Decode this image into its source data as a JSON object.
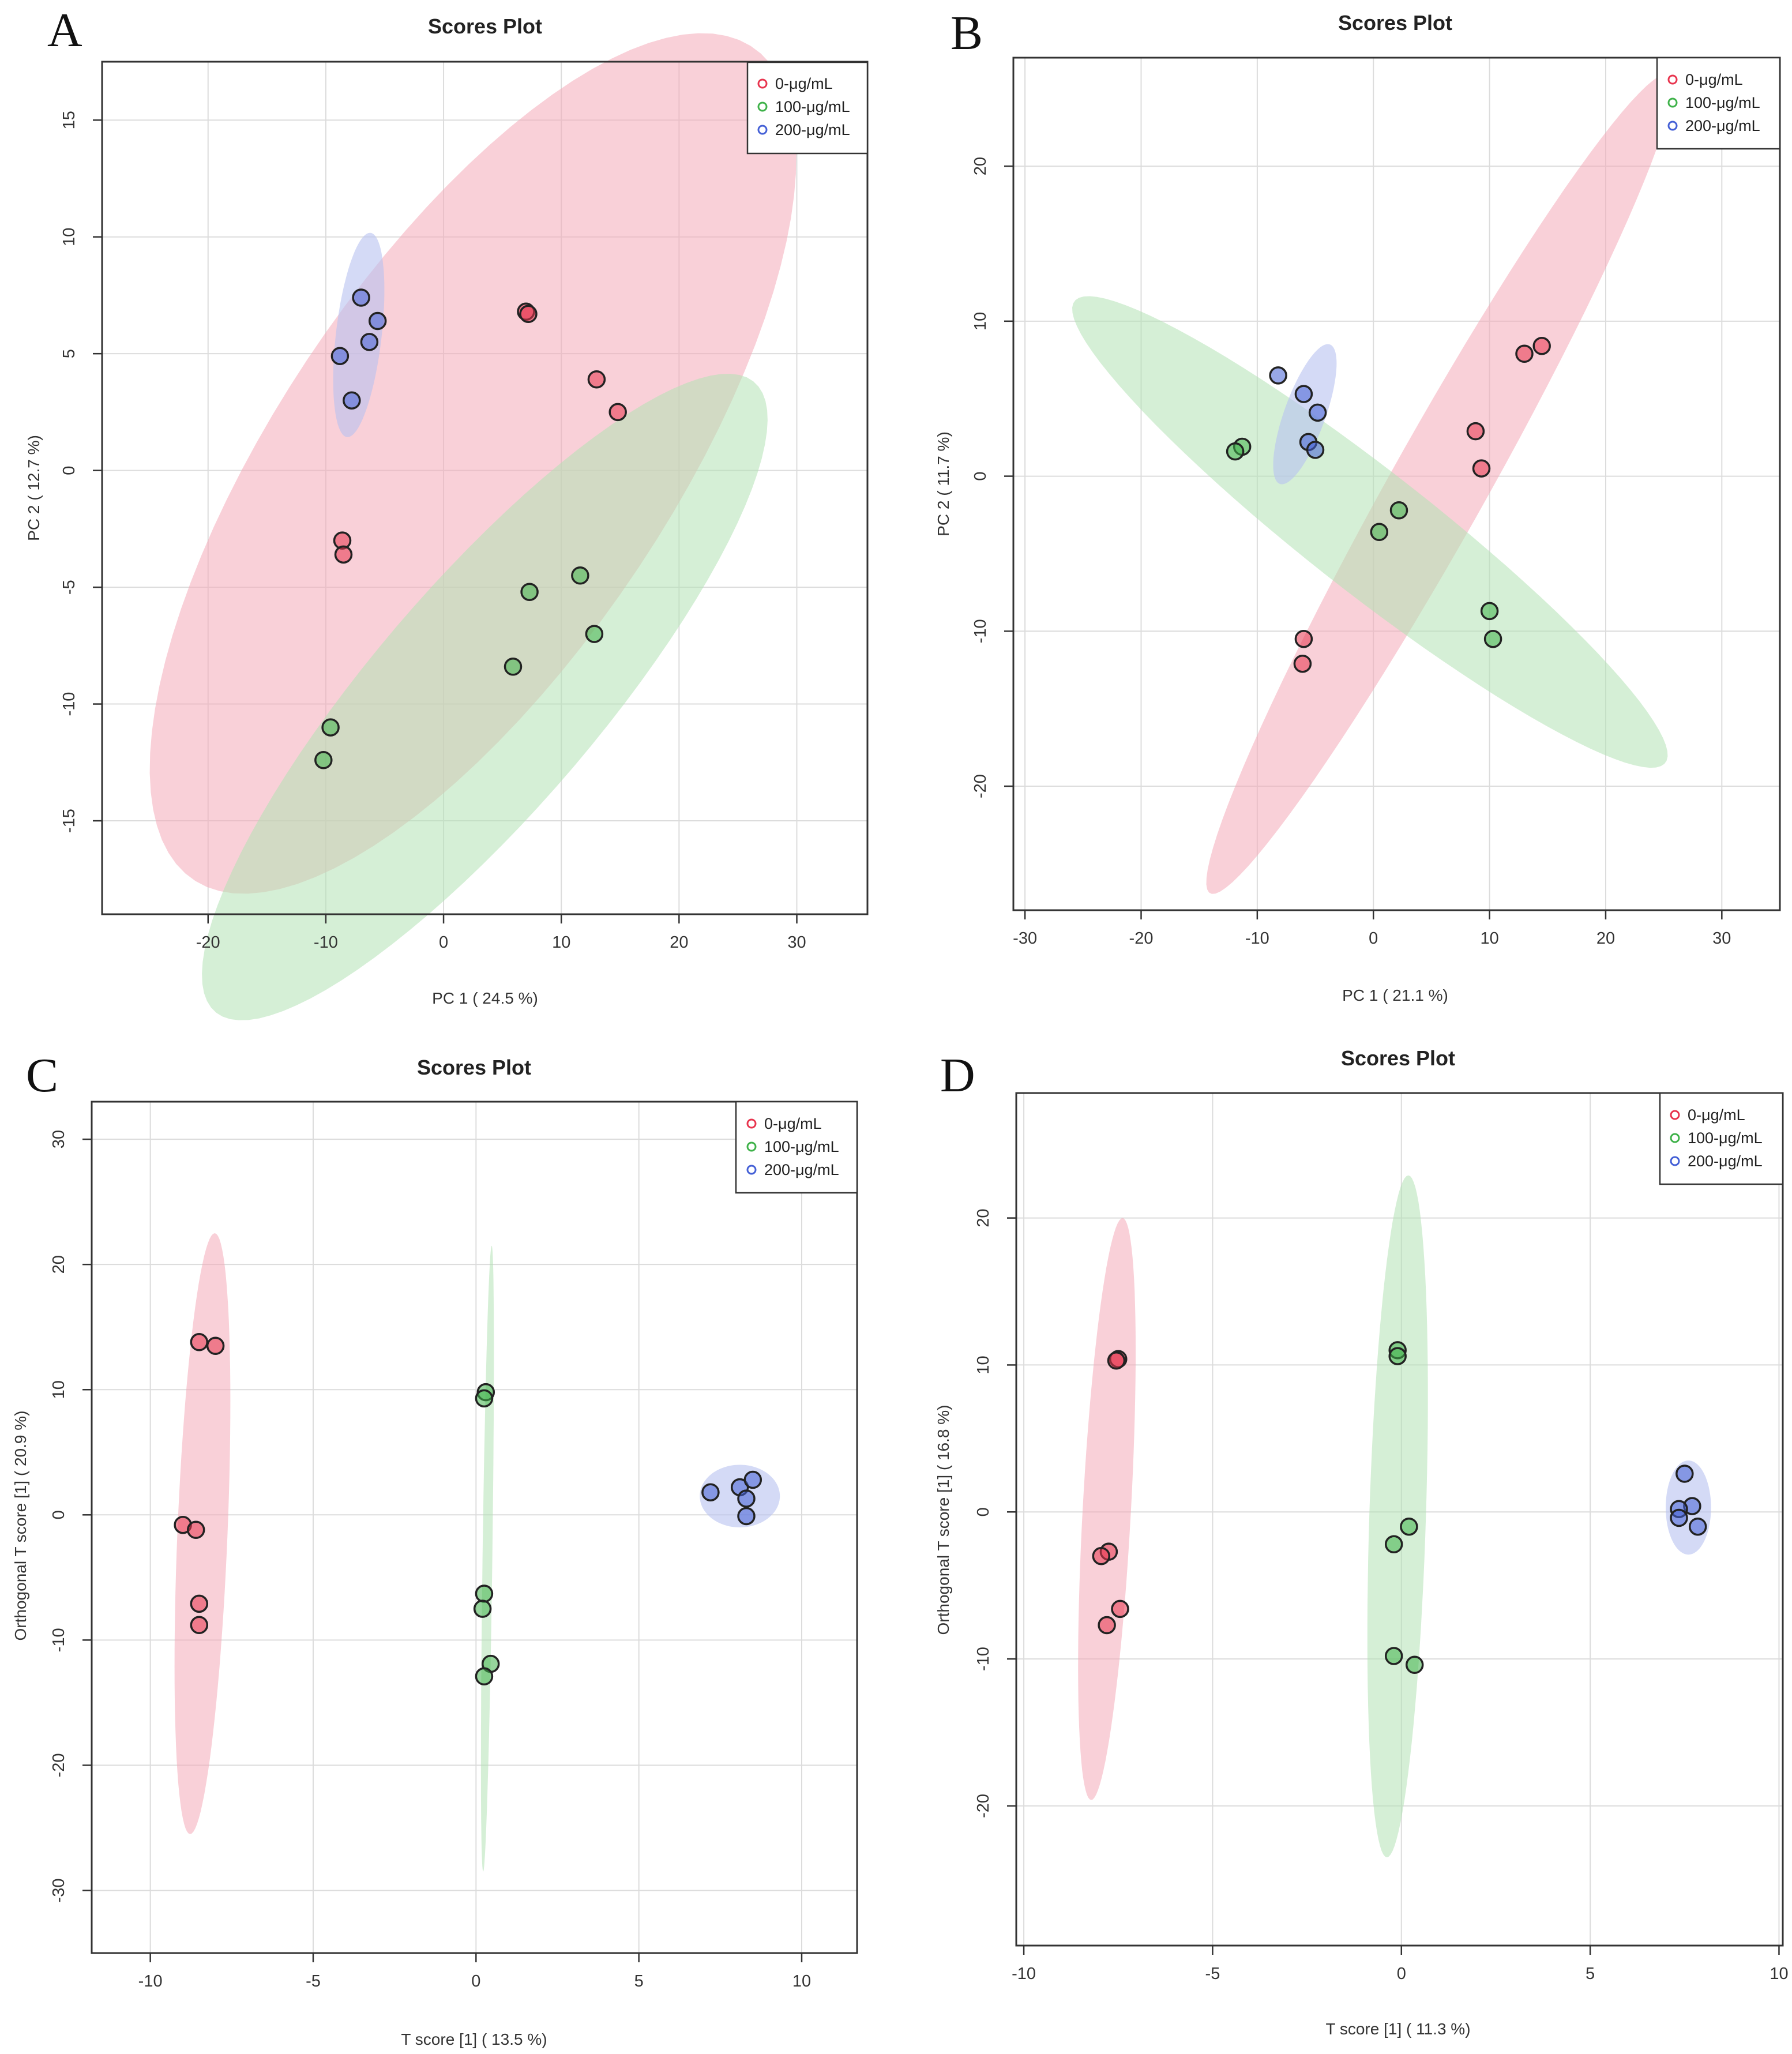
{
  "figure": {
    "series_names": [
      "0-μg/mL",
      "100-μg/mL",
      "200-μg/mL"
    ],
    "series_colors": [
      "#e8344e",
      "#3fb24a",
      "#4460d6"
    ],
    "ellipse_colors": [
      "#f4a9b8",
      "#b2e2b4",
      "#b8c2f0"
    ]
  },
  "chart_data": [
    {
      "panel": "A",
      "type": "scatter",
      "title": "Scores Plot",
      "xlabel": "PC 1 ( 24.5 %)",
      "ylabel": "PC 2 ( 12.7 %)",
      "xlim": [
        -29,
        36
      ],
      "ylim": [
        -19,
        17.5
      ],
      "xticks": [
        -20,
        -10,
        0,
        10,
        20,
        30
      ],
      "yticks": [
        -15,
        -10,
        -5,
        0,
        5,
        10,
        15
      ],
      "grid": true,
      "legend_position": "top-right",
      "series": [
        {
          "name": "0-μg/mL",
          "x": [
            7,
            7.2,
            13,
            14.8,
            -8.6,
            -8.5
          ],
          "y": [
            6.8,
            6.7,
            3.9,
            2.5,
            -3,
            -3.6
          ],
          "ellipse": {
            "cx": 2.5,
            "cy": 0.3,
            "rx": 31,
            "ry": 11.5,
            "angle": 30
          }
        },
        {
          "name": "100-μg/mL",
          "x": [
            7.3,
            11.6,
            12.8,
            5.9,
            -9.6,
            -10.2
          ],
          "y": [
            -5.2,
            -4.5,
            -7,
            -8.4,
            -11,
            -12.4
          ],
          "ellipse": {
            "cx": 3.5,
            "cy": -9.7,
            "rx": 27,
            "ry": 6.3,
            "angle": 28
          }
        },
        {
          "name": "200-μg/mL",
          "x": [
            -7,
            -5.6,
            -6.3,
            -8.8,
            -7.8
          ],
          "y": [
            7.4,
            6.4,
            5.5,
            4.9,
            3
          ],
          "ellipse": {
            "cx": -7.2,
            "cy": 5.8,
            "rx": 4.5,
            "ry": 1.9,
            "angle": 75
          }
        }
      ]
    },
    {
      "panel": "B",
      "type": "scatter",
      "title": "Scores Plot",
      "xlabel": "PC 1 ( 21.1 %)",
      "ylabel": "PC 2 ( 11.7 %)",
      "xlim": [
        -31,
        35
      ],
      "ylim": [
        -28,
        27
      ],
      "xticks": [
        -30,
        -20,
        -10,
        0,
        10,
        20,
        30
      ],
      "yticks": [
        -20,
        -10,
        0,
        10,
        20
      ],
      "grid": true,
      "legend_position": "top-right",
      "series": [
        {
          "name": "0-μg/mL",
          "x": [
            14.5,
            13,
            8.8,
            9.3,
            -6,
            -6.1
          ],
          "y": [
            8.4,
            7.9,
            2.9,
            0.5,
            -10.5,
            -12.1
          ],
          "ellipse": {
            "cx": 5.7,
            "cy": -0.5,
            "rx": 33,
            "ry": 3.8,
            "angle": 53
          }
        },
        {
          "name": "100-μg/mL",
          "x": [
            -11.3,
            -11.9,
            2.2,
            0.5,
            10,
            10.3
          ],
          "y": [
            1.9,
            1.6,
            -2.2,
            -3.6,
            -8.7,
            -10.5
          ],
          "ellipse": {
            "cx": -0.3,
            "cy": -3.6,
            "rx": 29.5,
            "ry": 4.3,
            "angle": -30
          }
        },
        {
          "name": "200-μg/mL",
          "x": [
            -8.2,
            -6,
            -4.8,
            -5.6,
            -5
          ],
          "y": [
            6.5,
            5.3,
            4.1,
            2.2,
            1.7
          ],
          "ellipse": {
            "cx": -5.9,
            "cy": 4,
            "rx": 5,
            "ry": 1.7,
            "angle": 63
          }
        }
      ]
    },
    {
      "panel": "C",
      "type": "scatter",
      "title": "Scores Plot",
      "xlabel": "T score [1] ( 13.5 %)",
      "ylabel": "Orthogonal T score [1] ( 20.9 %)",
      "xlim": [
        -11.8,
        11.7
      ],
      "ylim": [
        -35,
        33
      ],
      "xticks": [
        -10,
        -5,
        0,
        5,
        10
      ],
      "yticks": [
        -30,
        -20,
        -10,
        0,
        10,
        20,
        30
      ],
      "grid": true,
      "legend_position": "top-right",
      "series": [
        {
          "name": "0-μg/mL",
          "x": [
            -8.5,
            -8,
            -9,
            -8.6,
            -8.5,
            -8.5
          ],
          "y": [
            13.8,
            13.5,
            -0.8,
            -1.2,
            -7.1,
            -8.8
          ],
          "ellipse": {
            "cx": -8.4,
            "cy": -1.5,
            "rx": 24,
            "ry": 0.77,
            "angle": 89.1
          }
        },
        {
          "name": "100-μg/mL",
          "x": [
            0.3,
            0.25,
            0.25,
            0.2,
            0.45,
            0.25
          ],
          "y": [
            9.8,
            9.3,
            -6.3,
            -7.5,
            -11.9,
            -12.9
          ],
          "ellipse": {
            "cx": 0.35,
            "cy": -3.5,
            "rx": 25,
            "ry": 0.15,
            "angle": 89.7
          }
        },
        {
          "name": "200-μg/mL",
          "x": [
            7.2,
            8.1,
            8.5,
            8.3,
            8.3
          ],
          "y": [
            1.8,
            2.2,
            2.8,
            1.3,
            -0.1
          ],
          "ellipse": {
            "cx": 8.1,
            "cy": 1.5,
            "rx": 1.23,
            "ry": 2.5,
            "angle": 0
          }
        }
      ]
    },
    {
      "panel": "D",
      "type": "scatter",
      "title": "Scores Plot",
      "xlabel": "T score [1] ( 11.3 %)",
      "ylabel": "Orthogonal T score [1] ( 16.8 %)",
      "xlim": [
        -10.2,
        10.1
      ],
      "ylim": [
        -29.5,
        28.5
      ],
      "xticks": [
        -10,
        -5,
        0,
        5,
        10
      ],
      "yticks": [
        -20,
        -10,
        0,
        10,
        20
      ],
      "grid": true,
      "legend_position": "top-right",
      "series": [
        {
          "name": "0-μg/mL",
          "x": [
            -7.5,
            -7.55,
            -7.75,
            -7.95,
            -7.45,
            -7.8
          ],
          "y": [
            10.4,
            10.3,
            -2.7,
            -3,
            -6.6,
            -7.7
          ],
          "ellipse": {
            "cx": -7.8,
            "cy": 0.2,
            "rx": 19.8,
            "ry": 0.64,
            "angle": 88.8
          }
        },
        {
          "name": "100-μg/mL",
          "x": [
            -0.1,
            -0.1,
            0.2,
            -0.2,
            -0.2,
            0.35
          ],
          "y": [
            11,
            10.6,
            -1,
            -2.2,
            -9.8,
            -10.4
          ],
          "ellipse": {
            "cx": -0.1,
            "cy": -0.3,
            "rx": 23.2,
            "ry": 0.75,
            "angle": 89.3
          }
        },
        {
          "name": "200-μg/mL",
          "x": [
            7.5,
            7.7,
            7.35,
            7.35,
            7.85
          ],
          "y": [
            2.6,
            0.4,
            0.2,
            -0.4,
            -1
          ],
          "ellipse": {
            "cx": 7.6,
            "cy": 0.3,
            "rx": 0.6,
            "ry": 3.2,
            "angle": 0
          }
        }
      ]
    }
  ]
}
